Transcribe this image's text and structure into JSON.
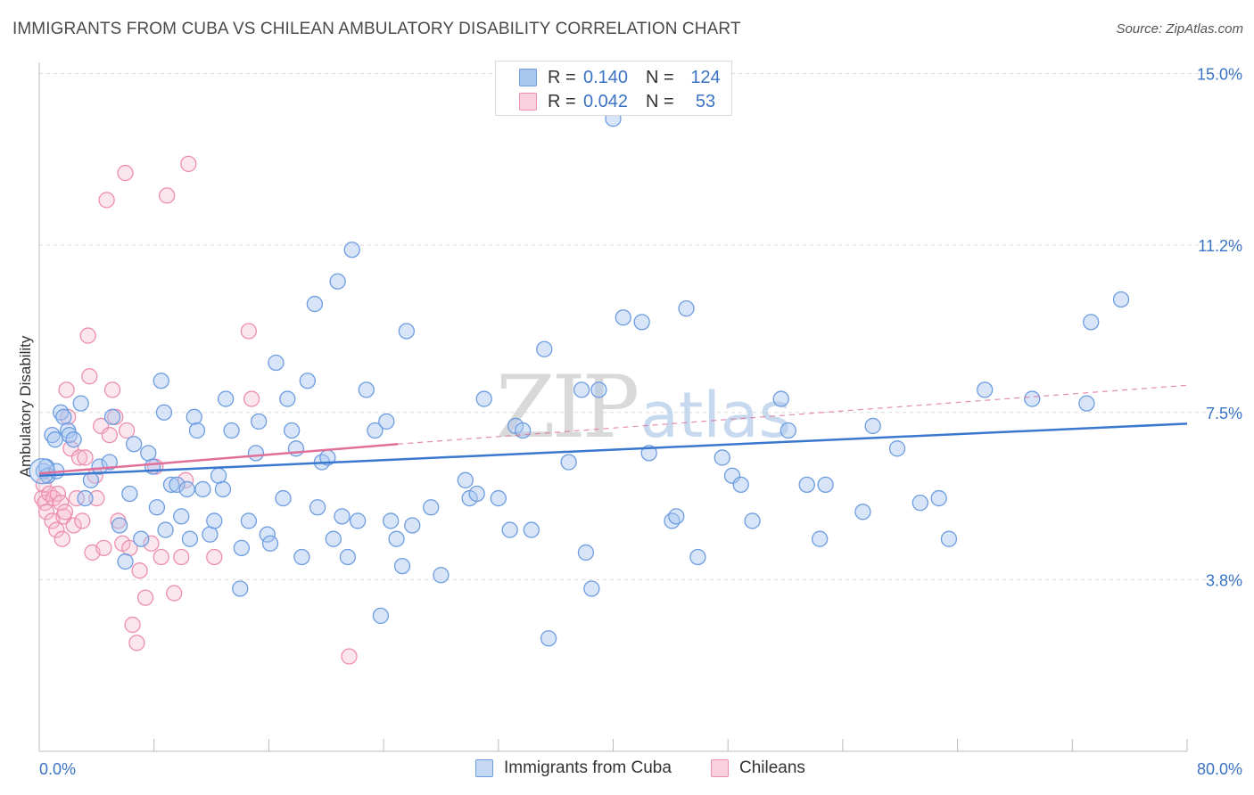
{
  "header": {
    "title": "IMMIGRANTS FROM CUBA VS CHILEAN AMBULATORY DISABILITY CORRELATION CHART",
    "source": "Source: ZipAtlas.com"
  },
  "legend_top": {
    "rows": [
      {
        "label": "R =",
        "r": "0.140",
        "n_label": "N =",
        "n": "124"
      },
      {
        "label": "R =",
        "r": "0.042",
        "n_label": "N =",
        "n": "53"
      }
    ]
  },
  "legend_bottom": {
    "items": [
      "Immigrants from Cuba",
      "Chileans"
    ]
  },
  "watermark": {
    "zip": "ZIP",
    "atlas": "atlas"
  },
  "colors": {
    "blue_fill": "#a9c6ef",
    "blue_stroke": "#6d9de0",
    "blue_line": "#3a78d0",
    "pink_fill": "#f5b7ca",
    "pink_stroke": "#ec8fae",
    "pink_line": "#e0709a",
    "tick_label": "#3a73c4",
    "grid": "#dcdcdc"
  },
  "chart_data": {
    "type": "scatter",
    "title": "IMMIGRANTS FROM CUBA VS CHILEAN AMBULATORY DISABILITY CORRELATION CHART",
    "xlabel": "",
    "ylabel": "Ambulatory Disability",
    "xlim": [
      0,
      80
    ],
    "ylim": [
      0,
      15.8
    ],
    "x_tick_labels": [
      "0.0%",
      "80.0%"
    ],
    "y_ticks": [
      3.8,
      7.5,
      11.2,
      15.0
    ],
    "y_tick_labels": [
      "3.8%",
      "7.5%",
      "11.2%",
      "15.0%"
    ],
    "grid": true,
    "legend_position": "top-center",
    "series": [
      {
        "name": "Immigrants from Cuba",
        "R": 0.14,
        "N": 124,
        "trend": {
          "x": [
            0,
            80
          ],
          "y": [
            6.1,
            7.25
          ]
        },
        "points": [
          [
            0.3,
            6.2
          ],
          [
            0.5,
            6.3
          ],
          [
            0.6,
            6.1
          ],
          [
            0.9,
            7.0
          ],
          [
            1.1,
            6.9
          ],
          [
            1.2,
            6.2
          ],
          [
            1.5,
            7.5
          ],
          [
            1.7,
            7.4
          ],
          [
            2.0,
            7.1
          ],
          [
            2.1,
            7.0
          ],
          [
            2.4,
            6.9
          ],
          [
            2.9,
            7.7
          ],
          [
            3.2,
            5.6
          ],
          [
            3.6,
            6.0
          ],
          [
            4.2,
            6.3
          ],
          [
            4.9,
            6.4
          ],
          [
            5.1,
            7.4
          ],
          [
            5.6,
            5.0
          ],
          [
            6.0,
            4.2
          ],
          [
            6.3,
            5.7
          ],
          [
            6.6,
            6.8
          ],
          [
            7.1,
            4.7
          ],
          [
            7.6,
            6.6
          ],
          [
            7.9,
            6.3
          ],
          [
            8.2,
            5.4
          ],
          [
            8.5,
            8.2
          ],
          [
            8.8,
            4.9
          ],
          [
            8.7,
            7.5
          ],
          [
            9.2,
            5.9
          ],
          [
            9.6,
            5.9
          ],
          [
            9.9,
            5.2
          ],
          [
            10.3,
            5.8
          ],
          [
            10.5,
            4.7
          ],
          [
            10.8,
            7.4
          ],
          [
            11.0,
            7.1
          ],
          [
            11.4,
            5.8
          ],
          [
            11.9,
            4.8
          ],
          [
            12.2,
            5.1
          ],
          [
            12.5,
            6.1
          ],
          [
            12.8,
            5.8
          ],
          [
            13.0,
            7.8
          ],
          [
            13.4,
            7.1
          ],
          [
            14.0,
            3.6
          ],
          [
            14.1,
            4.5
          ],
          [
            14.6,
            5.1
          ],
          [
            15.1,
            6.6
          ],
          [
            15.3,
            7.3
          ],
          [
            15.9,
            4.8
          ],
          [
            16.1,
            4.6
          ],
          [
            16.5,
            8.6
          ],
          [
            17.0,
            5.6
          ],
          [
            17.3,
            7.8
          ],
          [
            17.6,
            7.1
          ],
          [
            17.9,
            6.7
          ],
          [
            18.3,
            4.3
          ],
          [
            18.7,
            8.2
          ],
          [
            19.2,
            9.9
          ],
          [
            19.4,
            5.4
          ],
          [
            19.7,
            6.4
          ],
          [
            20.1,
            6.5
          ],
          [
            20.5,
            4.7
          ],
          [
            20.8,
            10.4
          ],
          [
            21.1,
            5.2
          ],
          [
            21.5,
            4.3
          ],
          [
            21.8,
            11.1
          ],
          [
            22.2,
            5.1
          ],
          [
            22.8,
            8.0
          ],
          [
            23.4,
            7.1
          ],
          [
            23.8,
            3.0
          ],
          [
            24.2,
            7.3
          ],
          [
            24.5,
            5.1
          ],
          [
            24.9,
            4.7
          ],
          [
            25.3,
            4.1
          ],
          [
            25.6,
            9.3
          ],
          [
            26.0,
            5.0
          ],
          [
            27.3,
            5.4
          ],
          [
            28.0,
            3.9
          ],
          [
            29.7,
            6.0
          ],
          [
            30.0,
            5.6
          ],
          [
            30.5,
            5.7
          ],
          [
            31.0,
            7.8
          ],
          [
            32.0,
            5.6
          ],
          [
            32.8,
            4.9
          ],
          [
            33.2,
            7.2
          ],
          [
            33.7,
            7.1
          ],
          [
            34.3,
            4.9
          ],
          [
            35.2,
            8.9
          ],
          [
            35.5,
            2.5
          ],
          [
            36.9,
            6.4
          ],
          [
            37.8,
            8.0
          ],
          [
            38.1,
            4.4
          ],
          [
            38.5,
            3.6
          ],
          [
            39.0,
            8.0
          ],
          [
            40.0,
            14.0
          ],
          [
            40.7,
            9.6
          ],
          [
            42.0,
            9.5
          ],
          [
            42.5,
            6.6
          ],
          [
            44.1,
            5.1
          ],
          [
            44.4,
            5.2
          ],
          [
            45.1,
            9.8
          ],
          [
            45.9,
            4.3
          ],
          [
            47.6,
            6.5
          ],
          [
            48.3,
            6.1
          ],
          [
            48.9,
            5.9
          ],
          [
            49.7,
            5.1
          ],
          [
            51.7,
            7.8
          ],
          [
            52.2,
            7.1
          ],
          [
            53.5,
            5.9
          ],
          [
            54.4,
            4.7
          ],
          [
            54.8,
            5.9
          ],
          [
            57.4,
            5.3
          ],
          [
            58.1,
            7.2
          ],
          [
            59.8,
            6.7
          ],
          [
            61.4,
            5.5
          ],
          [
            62.7,
            5.6
          ],
          [
            63.4,
            4.7
          ],
          [
            65.9,
            8.0
          ],
          [
            69.2,
            7.8
          ],
          [
            73.0,
            7.7
          ],
          [
            73.3,
            9.5
          ],
          [
            75.4,
            10.0
          ]
        ]
      },
      {
        "name": "Chileans",
        "R": 0.042,
        "N": 53,
        "trend": {
          "x": [
            0,
            25
          ],
          "y": [
            6.15,
            6.8
          ]
        },
        "trend_extended": {
          "x": [
            25,
            80
          ],
          "y": [
            6.8,
            8.1
          ]
        },
        "points": [
          [
            0.2,
            5.6
          ],
          [
            0.3,
            5.9
          ],
          [
            0.4,
            5.5
          ],
          [
            0.5,
            5.3
          ],
          [
            0.7,
            5.7
          ],
          [
            0.9,
            5.1
          ],
          [
            1.0,
            5.6
          ],
          [
            1.2,
            4.9
          ],
          [
            1.3,
            5.7
          ],
          [
            1.5,
            5.5
          ],
          [
            1.6,
            4.7
          ],
          [
            1.7,
            5.2
          ],
          [
            1.8,
            5.3
          ],
          [
            1.9,
            8.0
          ],
          [
            2.0,
            7.4
          ],
          [
            2.2,
            6.7
          ],
          [
            2.4,
            5.0
          ],
          [
            2.6,
            5.6
          ],
          [
            2.8,
            6.5
          ],
          [
            3.0,
            5.1
          ],
          [
            3.2,
            6.5
          ],
          [
            3.4,
            9.2
          ],
          [
            3.5,
            8.3
          ],
          [
            3.7,
            4.4
          ],
          [
            3.9,
            6.1
          ],
          [
            4.0,
            5.6
          ],
          [
            4.3,
            7.2
          ],
          [
            4.5,
            4.5
          ],
          [
            4.7,
            12.2
          ],
          [
            4.9,
            7.0
          ],
          [
            5.1,
            8.0
          ],
          [
            5.3,
            7.4
          ],
          [
            5.5,
            5.1
          ],
          [
            5.8,
            4.6
          ],
          [
            6.0,
            12.8
          ],
          [
            6.1,
            7.1
          ],
          [
            6.3,
            4.5
          ],
          [
            6.5,
            2.8
          ],
          [
            6.8,
            2.4
          ],
          [
            7.0,
            4.0
          ],
          [
            7.4,
            3.4
          ],
          [
            7.8,
            4.6
          ],
          [
            8.1,
            6.3
          ],
          [
            8.5,
            4.3
          ],
          [
            8.9,
            12.3
          ],
          [
            9.4,
            3.5
          ],
          [
            9.9,
            4.3
          ],
          [
            10.2,
            6.0
          ],
          [
            10.4,
            13.0
          ],
          [
            12.2,
            4.3
          ],
          [
            14.6,
            9.3
          ],
          [
            14.8,
            7.8
          ],
          [
            21.6,
            2.1
          ]
        ]
      }
    ]
  }
}
